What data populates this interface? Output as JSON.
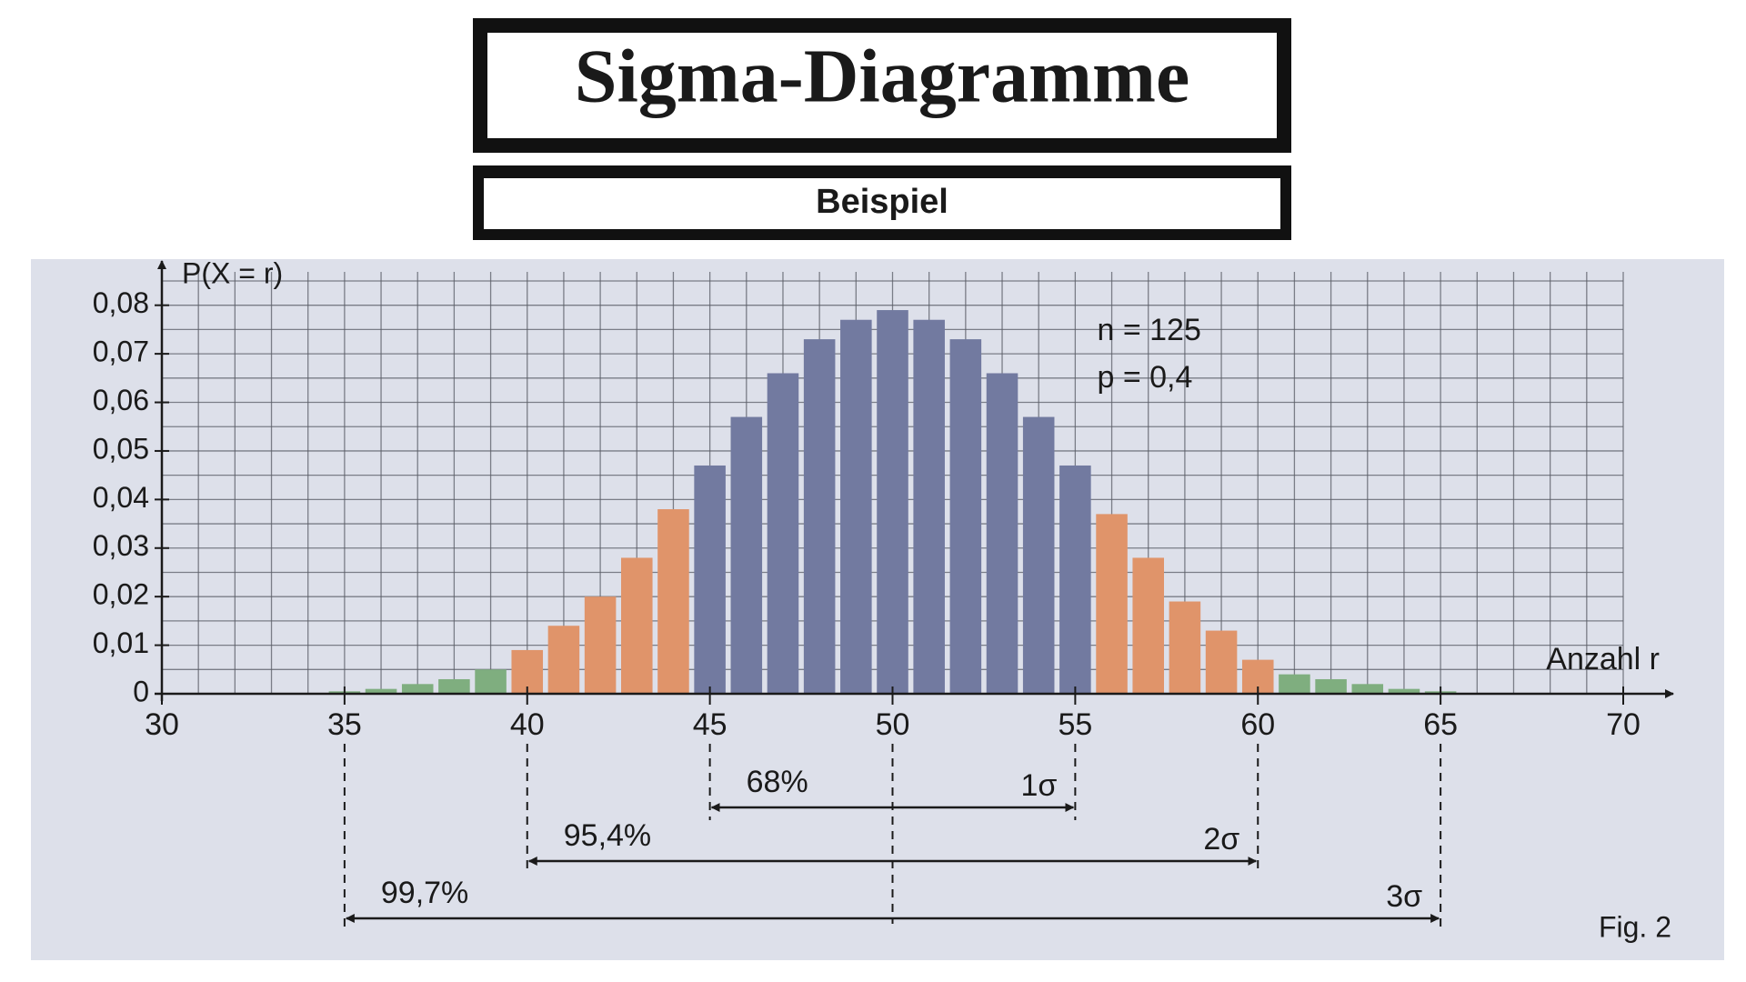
{
  "header": {
    "title": "Sigma-Diagramme",
    "subtitle": "Beispiel"
  },
  "chart_data": {
    "type": "bar",
    "ylabel": "P(X = r)",
    "xlabel": "Anzahl r",
    "annotations": [
      "n = 125",
      "p = 0,4"
    ],
    "figure_label": "Fig. 2",
    "x": [
      35,
      36,
      37,
      38,
      39,
      40,
      41,
      42,
      43,
      44,
      45,
      46,
      47,
      48,
      49,
      50,
      51,
      52,
      53,
      54,
      55,
      56,
      57,
      58,
      59,
      60,
      61,
      62,
      63,
      64,
      65
    ],
    "values": [
      0.0005,
      0.001,
      0.002,
      0.003,
      0.005,
      0.009,
      0.014,
      0.02,
      0.028,
      0.038,
      0.047,
      0.057,
      0.066,
      0.073,
      0.077,
      0.079,
      0.077,
      0.073,
      0.066,
      0.057,
      0.047,
      0.037,
      0.028,
      0.019,
      0.013,
      0.007,
      0.004,
      0.003,
      0.002,
      0.001,
      0.0005
    ],
    "colors": [
      "#7fae7f",
      "#7fae7f",
      "#7fae7f",
      "#7fae7f",
      "#7fae7f",
      "#e0946a",
      "#e0946a",
      "#e0946a",
      "#e0946a",
      "#e0946a",
      "#727aa0",
      "#727aa0",
      "#727aa0",
      "#727aa0",
      "#727aa0",
      "#727aa0",
      "#727aa0",
      "#727aa0",
      "#727aa0",
      "#727aa0",
      "#727aa0",
      "#e0946a",
      "#e0946a",
      "#e0946a",
      "#e0946a",
      "#e0946a",
      "#7fae7f",
      "#7fae7f",
      "#7fae7f",
      "#7fae7f",
      "#7fae7f"
    ],
    "xlim": [
      30,
      70
    ],
    "ylim": [
      0,
      0.085
    ],
    "xticks": [
      30,
      35,
      40,
      45,
      50,
      55,
      60,
      65,
      70
    ],
    "yticks": [
      {
        "value": 0,
        "label": "0"
      },
      {
        "value": 0.01,
        "label": "0,01"
      },
      {
        "value": 0.02,
        "label": "0,02"
      },
      {
        "value": 0.03,
        "label": "0,03"
      },
      {
        "value": 0.04,
        "label": "0,04"
      },
      {
        "value": 0.05,
        "label": "0,05"
      },
      {
        "value": 0.06,
        "label": "0,06"
      },
      {
        "value": 0.07,
        "label": "0,07"
      },
      {
        "value": 0.08,
        "label": "0,08"
      }
    ],
    "grid": true,
    "grid_x_step": 1,
    "grid_y_step": 0.005,
    "mean": 50,
    "intervals": [
      {
        "from": 45,
        "to": 55,
        "label": "68%",
        "sigma": "1σ"
      },
      {
        "from": 40,
        "to": 60,
        "label": "95,4%",
        "sigma": "2σ"
      },
      {
        "from": 35,
        "to": 65,
        "label": "99,7%",
        "sigma": "3σ"
      }
    ]
  }
}
